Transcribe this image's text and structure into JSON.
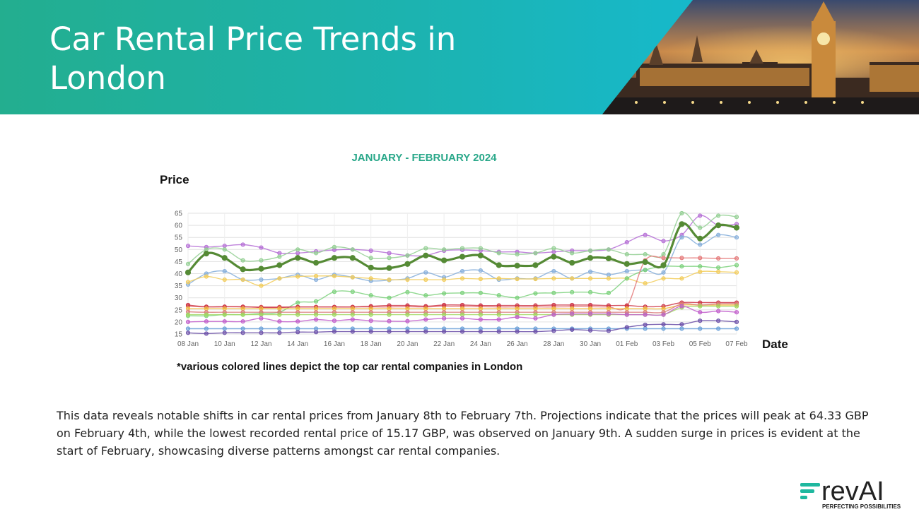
{
  "header": {
    "title": "Car Rental Price Trends in London",
    "photo": "big-ben-westminster-night-photo"
  },
  "description": "This data reveals notable shifts in car rental prices from January 8th to February 7th. Projections indicate that the prices will peak at 64.33 GBP on February 4th, while the lowest recorded rental price of 15.17 GBP, was observed on January 9th. A sudden surge in prices is evident at the start of February, showcasing diverse patterns amongst car rental companies.",
  "logo": {
    "text": "revAI",
    "tagline": "PERFECTING POSSIBILITIES",
    "accent": "#1fb89f"
  },
  "chart_data": {
    "type": "line",
    "title": "JANUARY - FEBRUARY 2024",
    "ylabel": "Price",
    "xlabel": "Date",
    "note": "*various colored lines depict the top car rental companies in London",
    "x": [
      "08 Jan",
      "09 Jan",
      "10 Jan",
      "11 Jan",
      "12 Jan",
      "13 Jan",
      "14 Jan",
      "15 Jan",
      "16 Jan",
      "17 Jan",
      "18 Jan",
      "19 Jan",
      "20 Jan",
      "21 Jan",
      "22 Jan",
      "23 Jan",
      "24 Jan",
      "25 Jan",
      "26 Jan",
      "27 Jan",
      "28 Jan",
      "29 Jan",
      "30 Jan",
      "31 Jan",
      "01 Feb",
      "02 Feb",
      "03 Feb",
      "04 Feb",
      "05 Feb",
      "06 Feb",
      "07 Feb"
    ],
    "x_ticks": [
      "08 Jan",
      "10 Jan",
      "12 Jan",
      "14 Jan",
      "16 Jan",
      "18 Jan",
      "20 Jan",
      "22 Jan",
      "24 Jan",
      "26 Jan",
      "28 Jan",
      "30 Jan",
      "01 Feb",
      "03 Feb",
      "05 Feb",
      "07 Feb"
    ],
    "y_ticks": [
      15,
      20,
      25,
      30,
      35,
      40,
      45,
      50,
      55,
      60,
      65
    ],
    "ylim": [
      15,
      65
    ],
    "grid": true,
    "series": [
      {
        "color": "#b56fd6",
        "values": [
          51.5,
          51,
          51.5,
          52,
          50.8,
          48.5,
          48.5,
          49.2,
          49.8,
          50,
          49.5,
          48.5,
          47.5,
          47.5,
          49.5,
          49.8,
          49.5,
          49,
          49,
          48.5,
          49,
          49.5,
          49.5,
          50,
          53,
          56,
          53.5,
          56,
          64,
          60,
          60.5
        ]
      },
      {
        "color": "#93cf93",
        "values": [
          44,
          50,
          50,
          45.5,
          45.5,
          47,
          50,
          48.5,
          51,
          50,
          46.5,
          46.5,
          47.5,
          50.5,
          50,
          50.5,
          50.5,
          48.5,
          48,
          48.5,
          50.5,
          48.5,
          49.5,
          50,
          48,
          48,
          48,
          65,
          59,
          64,
          63.5
        ]
      },
      {
        "color": "#558a35",
        "bold": true,
        "values": [
          40.5,
          48.3,
          46.5,
          41.8,
          42,
          43.5,
          46.5,
          44.5,
          46.5,
          46.5,
          42.5,
          42.3,
          44,
          47.5,
          45.5,
          47,
          47.5,
          43.5,
          43.3,
          43.5,
          47,
          44.5,
          46.5,
          46.3,
          44,
          44.8,
          43.5,
          60.5,
          54.5,
          60,
          59
        ]
      },
      {
        "color": "#85aedb",
        "values": [
          35.5,
          40,
          41,
          37.5,
          37.5,
          38,
          39.5,
          37.5,
          39.5,
          38.5,
          37,
          37.3,
          38,
          40.5,
          38.5,
          41,
          41.3,
          37.5,
          38,
          38,
          41,
          38,
          40.8,
          39.5,
          41,
          41.5,
          40.5,
          55,
          52,
          56,
          55
        ]
      },
      {
        "color": "#f2cc5a",
        "values": [
          36.5,
          38.8,
          37.5,
          37.5,
          35,
          38,
          38.8,
          39,
          39,
          38.5,
          38,
          37.5,
          37.5,
          37.5,
          37.5,
          38,
          37.8,
          38,
          37.8,
          37.8,
          38,
          38,
          38,
          38,
          38,
          36,
          38,
          38,
          40.8,
          40.8,
          40.5
        ]
      },
      {
        "color": "#7bd17b",
        "values": [
          22.5,
          22.5,
          23,
          23,
          23.5,
          24,
          28,
          28.5,
          32.5,
          32.5,
          31,
          30,
          32.3,
          31,
          31.8,
          32,
          32,
          31,
          30,
          31.8,
          32,
          32.3,
          32.3,
          32,
          38,
          41.5,
          43,
          43,
          43,
          42.5,
          43.5
        ]
      },
      {
        "color": "#e47777",
        "values": [
          26.5,
          26.2,
          26.3,
          26.2,
          26.2,
          26.2,
          26.2,
          26.2,
          26.2,
          26.2,
          26.2,
          26.2,
          26.3,
          26.2,
          26.5,
          26.3,
          26.3,
          26.2,
          26.2,
          26.2,
          26.2,
          26.3,
          26.3,
          26.2,
          26.5,
          45.5,
          46.5,
          46.5,
          46.5,
          46.3,
          46.3
        ]
      },
      {
        "color": "#cc3344",
        "values": [
          27,
          26.3,
          26.3,
          26.3,
          26,
          26,
          26.2,
          26.2,
          26.2,
          26.2,
          26.5,
          26.8,
          26.8,
          26.5,
          27,
          27,
          26.8,
          26.8,
          26.8,
          26.8,
          27,
          27,
          27,
          26.8,
          26.8,
          26.3,
          26.5,
          28,
          28,
          28,
          28
        ]
      },
      {
        "color": "#f0c040",
        "values": [
          25.5,
          25.5,
          25.5,
          25.5,
          25.5,
          25.5,
          25.5,
          25.5,
          25.5,
          25.5,
          25.5,
          25.5,
          25.5,
          25.5,
          25.5,
          25.5,
          25.5,
          25.5,
          25.5,
          25.5,
          25.5,
          25.5,
          25.5,
          25.5,
          25.5,
          25.5,
          25.5,
          27,
          27,
          27,
          27
        ]
      },
      {
        "color": "#d97b7b",
        "values": [
          24.2,
          24,
          24,
          24,
          24,
          24,
          24,
          24,
          24,
          24,
          24,
          24,
          24,
          24,
          24,
          24,
          24,
          24,
          24,
          24,
          24,
          24,
          24,
          24,
          24,
          24,
          24,
          27.5,
          27,
          27.5,
          27.5
        ]
      },
      {
        "color": "#a0d860",
        "values": [
          23,
          23,
          23,
          23,
          23,
          23,
          23,
          23,
          23,
          23,
          23,
          23,
          23,
          23,
          23,
          23,
          23,
          23,
          23,
          23,
          23,
          23,
          23,
          23,
          23,
          23,
          23,
          26,
          26.5,
          26.5,
          26.5
        ]
      },
      {
        "color": "#c15dcb",
        "values": [
          20,
          20.2,
          20.2,
          20.2,
          21.5,
          20.2,
          20.2,
          21,
          20.5,
          21,
          20.5,
          20.3,
          20.3,
          21,
          21.5,
          21.5,
          21,
          21,
          22,
          21.5,
          23,
          23.3,
          23.3,
          23.3,
          23,
          23,
          23,
          26.5,
          24,
          24.5,
          24
        ]
      },
      {
        "color": "#6aa0d8",
        "values": [
          17.2,
          17.2,
          17.2,
          17.2,
          17.2,
          17.2,
          17.2,
          17.2,
          17.2,
          17.2,
          17.2,
          17.2,
          17.2,
          17.2,
          17.2,
          17.2,
          17.2,
          17.2,
          17.2,
          17.2,
          17.2,
          17.2,
          17.2,
          17.2,
          17.2,
          17.2,
          17.2,
          17.2,
          17.2,
          17.2,
          17.2
        ]
      },
      {
        "color": "#6b4fa8",
        "values": [
          15.5,
          15.17,
          15.5,
          15.5,
          15.5,
          15.5,
          15.8,
          15.8,
          16,
          16,
          16,
          16,
          16,
          16,
          16,
          16,
          16,
          16,
          16,
          16,
          16.3,
          16.8,
          16.5,
          16.3,
          17.8,
          18.8,
          19,
          19,
          20.5,
          20.5,
          20
        ]
      }
    ]
  }
}
